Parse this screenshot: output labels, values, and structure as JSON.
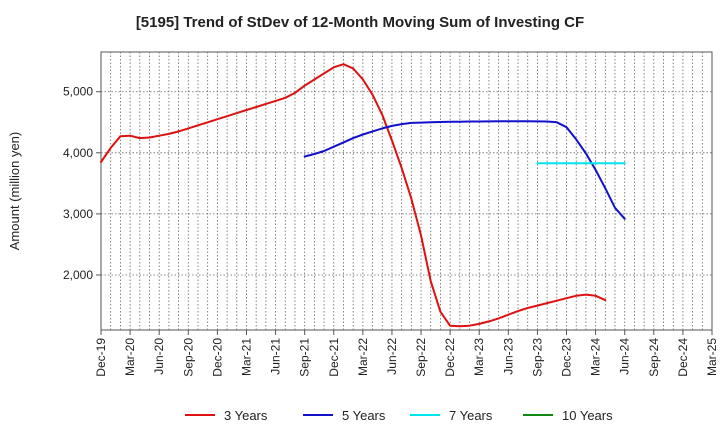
{
  "chart_data": {
    "type": "line",
    "title": "[5195]  Trend of StDev of 12-Month Moving Sum of Investing CF",
    "xlabel": "",
    "ylabel": "Amount (million yen)",
    "ylim": [
      1100,
      5650
    ],
    "yticks": [
      2000,
      3000,
      4000,
      5000
    ],
    "ytick_labels": [
      "2,000",
      "3,000",
      "4,000",
      "5,000"
    ],
    "x_tick_labels": [
      "Dec-19",
      "Mar-20",
      "Jun-20",
      "Sep-20",
      "Dec-20",
      "Mar-21",
      "Jun-21",
      "Sep-21",
      "Dec-21",
      "Mar-22",
      "Jun-22",
      "Sep-22",
      "Dec-22",
      "Mar-23",
      "Jun-23",
      "Sep-23",
      "Dec-23",
      "Mar-24",
      "Jun-24",
      "Sep-24",
      "Dec-24",
      "Mar-25"
    ],
    "grid": true,
    "legend_position": "bottom",
    "series": [
      {
        "name": "3 Years",
        "color": "#dd1111",
        "points": [
          [
            0,
            3850
          ],
          [
            1,
            4080
          ],
          [
            2,
            4270
          ],
          [
            3,
            4280
          ],
          [
            4,
            4240
          ],
          [
            5,
            4250
          ],
          [
            6,
            4280
          ],
          [
            7,
            4310
          ],
          [
            8,
            4350
          ],
          [
            9,
            4400
          ],
          [
            10,
            4450
          ],
          [
            11,
            4500
          ],
          [
            12,
            4550
          ],
          [
            13,
            4600
          ],
          [
            14,
            4650
          ],
          [
            15,
            4700
          ],
          [
            16,
            4750
          ],
          [
            17,
            4800
          ],
          [
            18,
            4850
          ],
          [
            19,
            4900
          ],
          [
            20,
            4980
          ],
          [
            21,
            5100
          ],
          [
            22,
            5200
          ],
          [
            23,
            5300
          ],
          [
            24,
            5400
          ],
          [
            25,
            5450
          ],
          [
            26,
            5380
          ],
          [
            27,
            5200
          ],
          [
            28,
            4950
          ],
          [
            29,
            4620
          ],
          [
            30,
            4200
          ],
          [
            31,
            3750
          ],
          [
            32,
            3250
          ],
          [
            33,
            2650
          ],
          [
            34,
            1900
          ],
          [
            35,
            1400
          ],
          [
            36,
            1170
          ],
          [
            37,
            1160
          ],
          [
            38,
            1170
          ],
          [
            39,
            1200
          ],
          [
            40,
            1240
          ],
          [
            41,
            1290
          ],
          [
            42,
            1350
          ],
          [
            43,
            1410
          ],
          [
            44,
            1460
          ],
          [
            45,
            1500
          ],
          [
            46,
            1540
          ],
          [
            47,
            1580
          ],
          [
            48,
            1620
          ],
          [
            49,
            1660
          ],
          [
            50,
            1680
          ],
          [
            51,
            1660
          ],
          [
            52,
            1590
          ]
        ]
      },
      {
        "name": "5 Years",
        "color": "#1111cc",
        "points": [
          [
            21,
            3940
          ],
          [
            22,
            3980
          ],
          [
            23,
            4030
          ],
          [
            24,
            4100
          ],
          [
            25,
            4170
          ],
          [
            26,
            4240
          ],
          [
            27,
            4300
          ],
          [
            28,
            4350
          ],
          [
            29,
            4400
          ],
          [
            30,
            4440
          ],
          [
            31,
            4470
          ],
          [
            32,
            4490
          ],
          [
            33,
            4495
          ],
          [
            34,
            4500
          ],
          [
            35,
            4505
          ],
          [
            36,
            4508
          ],
          [
            37,
            4510
          ],
          [
            38,
            4512
          ],
          [
            39,
            4513
          ],
          [
            40,
            4514
          ],
          [
            41,
            4515
          ],
          [
            42,
            4515
          ],
          [
            43,
            4515
          ],
          [
            44,
            4515
          ],
          [
            45,
            4514
          ],
          [
            46,
            4512
          ],
          [
            47,
            4500
          ],
          [
            48,
            4420
          ],
          [
            49,
            4220
          ],
          [
            50,
            3990
          ],
          [
            51,
            3720
          ],
          [
            52,
            3420
          ],
          [
            53,
            3100
          ],
          [
            54,
            2920
          ]
        ]
      },
      {
        "name": "7 Years",
        "color": "#00e5ee",
        "points": [
          [
            45,
            3830
          ],
          [
            54,
            3830
          ]
        ]
      },
      {
        "name": "10 Years",
        "color": "#118811",
        "points": []
      }
    ]
  }
}
